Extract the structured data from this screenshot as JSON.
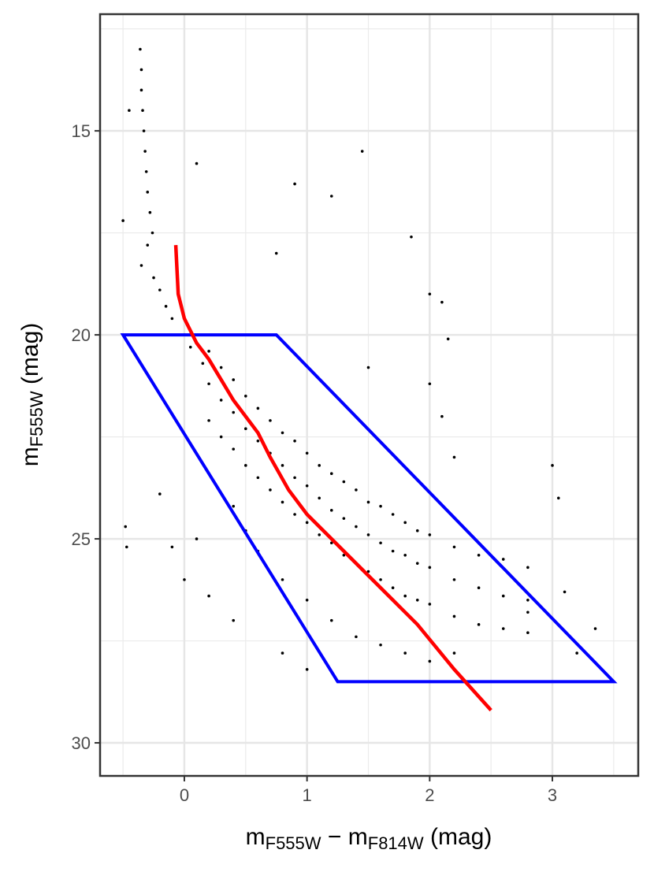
{
  "chart_data": {
    "type": "scatter",
    "x_label_parts": [
      {
        "text": "m",
        "sub": false
      },
      {
        "text": "F555W",
        "sub": true
      },
      {
        "text": " − ",
        "sub": false
      },
      {
        "text": "m",
        "sub": false
      },
      {
        "text": "F814W",
        "sub": true
      },
      {
        "text": " (mag)",
        "sub": false
      }
    ],
    "y_label_parts": [
      {
        "text": "m",
        "sub": false
      },
      {
        "text": "F555W",
        "sub": true
      },
      {
        "text": " (mag)",
        "sub": false
      }
    ],
    "xlim": [
      -0.687,
      3.7
    ],
    "ylim": [
      12.14,
      30.81
    ],
    "y_reversed": true,
    "xticks": [
      0,
      1,
      2,
      3
    ],
    "yticks": [
      15,
      20,
      25,
      30
    ],
    "minor_xticks": [
      -0.5,
      0.5,
      1.5,
      2.5,
      3.5
    ],
    "minor_yticks": [
      12.5,
      17.5,
      22.5,
      27.5
    ],
    "grid": true,
    "series": [
      {
        "name": "stars",
        "kind": "points",
        "color": "#000000",
        "x": [
          -0.36,
          -0.35,
          -0.35,
          -0.34,
          -0.33,
          -0.32,
          -0.31,
          -0.3,
          -0.28,
          -0.26,
          -0.3,
          -0.35,
          -0.25,
          -0.2,
          -0.15,
          -0.1,
          0,
          0.05,
          0.15,
          0.2,
          0.2,
          0.2,
          0.3,
          0.3,
          0.3,
          0.4,
          0.4,
          0.4,
          0.5,
          0.5,
          0.5,
          0.6,
          0.6,
          0.6,
          0.7,
          0.7,
          0.7,
          0.8,
          0.8,
          0.8,
          0.9,
          0.9,
          0.9,
          1.0,
          1.0,
          1.0,
          1.1,
          1.1,
          1.1,
          1.2,
          1.2,
          1.2,
          1.3,
          1.3,
          1.3,
          1.4,
          1.4,
          1.4,
          1.5,
          1.5,
          1.5,
          1.6,
          1.6,
          1.6,
          1.7,
          1.7,
          1.7,
          1.8,
          1.8,
          1.8,
          1.9,
          1.9,
          1.9,
          2.0,
          2.0,
          2.0,
          2.2,
          2.2,
          2.2,
          2.4,
          2.4,
          2.4,
          2.6,
          2.6,
          2.6,
          2.8,
          2.8,
          2.8,
          0.6,
          0.8,
          1.0,
          1.2,
          1.4,
          1.6,
          1.8,
          2.0,
          2.2,
          0.4,
          0.5,
          1.45,
          0.1,
          0.9,
          1.2,
          0.75,
          1.85,
          2.0,
          2.1,
          2.15,
          1.5,
          2.0,
          2.1,
          2.2,
          3.0,
          3.05,
          -0.5,
          -0.45,
          -0.2,
          -0.48,
          -0.47,
          -0.1,
          0.1,
          0.0,
          0.2,
          0.4,
          0.8,
          1.0,
          3.35,
          3.1,
          2.8,
          3.2
        ],
        "y": [
          13,
          13.5,
          14,
          14.5,
          15,
          15.5,
          16,
          16.5,
          17,
          17.5,
          17.8,
          18.3,
          18.6,
          18.9,
          19.3,
          19.6,
          20,
          20.3,
          20.7,
          20.4,
          21.2,
          22.1,
          20.8,
          21.6,
          22.5,
          21.1,
          21.9,
          22.8,
          21.5,
          22.3,
          23.2,
          21.8,
          22.6,
          23.5,
          22.1,
          22.9,
          23.8,
          22.4,
          23.2,
          24.1,
          22.6,
          23.5,
          24.4,
          22.9,
          23.7,
          24.6,
          23.2,
          24.0,
          24.9,
          23.4,
          24.3,
          25.1,
          23.6,
          24.5,
          25.4,
          23.8,
          24.7,
          25.6,
          24.1,
          24.9,
          25.8,
          24.2,
          25.1,
          26.0,
          24.4,
          25.3,
          26.2,
          24.6,
          25.4,
          26.4,
          24.8,
          25.6,
          26.5,
          24.9,
          25.7,
          26.6,
          25.2,
          26.0,
          26.9,
          25.4,
          26.2,
          27.1,
          25.5,
          26.4,
          27.2,
          25.7,
          26.5,
          27.3,
          25.3,
          26.0,
          26.5,
          27.0,
          27.4,
          27.6,
          27.8,
          28.0,
          27.8,
          24.2,
          24.8,
          15.5,
          15.8,
          16.3,
          16.6,
          18,
          17.6,
          19,
          19.2,
          20.1,
          20.8,
          21.2,
          22,
          23,
          23.2,
          24,
          17.2,
          14.5,
          23.9,
          24.7,
          25.2,
          25.2,
          25,
          26,
          26.4,
          27,
          27.8,
          28.2,
          27.2,
          26.3,
          26.8,
          27.8
        ]
      },
      {
        "name": "selection",
        "kind": "polygon",
        "color": "#0000ff",
        "x": [
          -0.5,
          0.75,
          3.5,
          1.25
        ],
        "y": [
          20,
          20,
          28.5,
          28.5
        ]
      },
      {
        "name": "ridge",
        "kind": "line",
        "color": "#ff0000",
        "x": [
          -0.07,
          -0.05,
          0,
          0.1,
          0.2,
          0.3,
          0.4,
          0.6,
          0.7,
          0.85,
          1.0,
          1.3,
          1.6,
          1.9,
          2.2,
          2.5
        ],
        "y": [
          17.8,
          19,
          19.6,
          20.2,
          20.6,
          21.1,
          21.6,
          22.4,
          23,
          23.8,
          24.4,
          25.3,
          26.2,
          27.1,
          28.2,
          29.2
        ]
      }
    ]
  }
}
